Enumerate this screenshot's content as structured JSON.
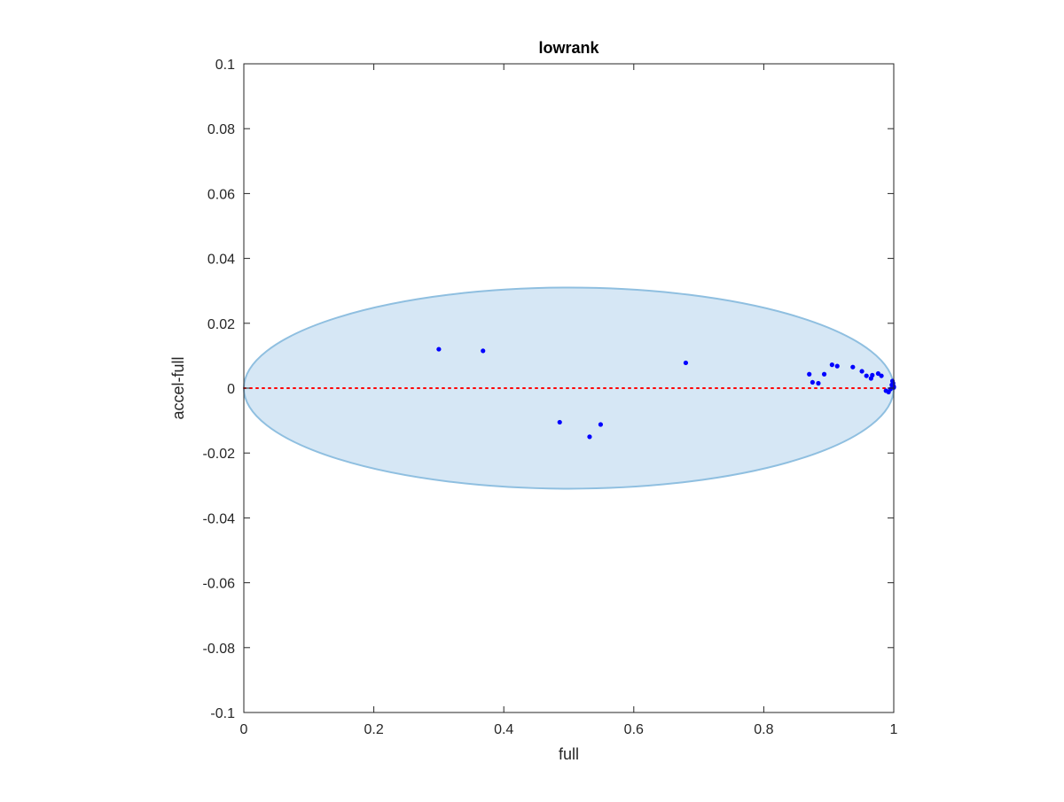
{
  "chart_data": {
    "type": "scatter",
    "title": "lowrank",
    "xlabel": "full",
    "ylabel": "accel-full",
    "xlim": [
      0,
      1
    ],
    "ylim": [
      -0.1,
      0.1
    ],
    "xticks": [
      {
        "value": 0,
        "label": "0"
      },
      {
        "value": 0.2,
        "label": "0.2"
      },
      {
        "value": 0.4,
        "label": "0.4"
      },
      {
        "value": 0.6,
        "label": "0.6"
      },
      {
        "value": 0.8,
        "label": "0.8"
      },
      {
        "value": 1,
        "label": "1"
      }
    ],
    "yticks": [
      {
        "value": 0.1,
        "label": "0.1"
      },
      {
        "value": 0.08,
        "label": "0.08"
      },
      {
        "value": 0.06,
        "label": "0.06"
      },
      {
        "value": 0.04,
        "label": "0.04"
      },
      {
        "value": 0.02,
        "label": "0.02"
      },
      {
        "value": 0,
        "label": "0"
      },
      {
        "value": -0.02,
        "label": "-0.02"
      },
      {
        "value": -0.04,
        "label": "-0.04"
      },
      {
        "value": -0.06,
        "label": "-0.06"
      },
      {
        "value": -0.08,
        "label": "-0.08"
      },
      {
        "value": -0.1,
        "label": "-0.1"
      }
    ],
    "grid": false,
    "reference_line": {
      "y": 0,
      "style": "dotted",
      "color": "#ff0000"
    },
    "ellipse": {
      "cx": 0.5,
      "cy": 0,
      "rx": 0.5,
      "ry": 0.031,
      "fill": "#d6e7f5",
      "stroke": "#8fbfe0"
    },
    "series": [
      {
        "color": "#0000ff",
        "points": [
          [
            0.3,
            0.012
          ],
          [
            0.368,
            0.0115
          ],
          [
            0.486,
            -0.0105
          ],
          [
            0.532,
            -0.015
          ],
          [
            0.549,
            -0.0112
          ],
          [
            0.68,
            0.0078
          ],
          [
            0.87,
            0.0043
          ],
          [
            0.875,
            0.0018
          ],
          [
            0.884,
            0.0015
          ],
          [
            0.893,
            0.0043
          ],
          [
            0.905,
            0.0072
          ],
          [
            0.913,
            0.0068
          ],
          [
            0.937,
            0.0065
          ],
          [
            0.951,
            0.0052
          ],
          [
            0.958,
            0.0038
          ],
          [
            0.965,
            0.003
          ],
          [
            0.967,
            0.004
          ],
          [
            0.976,
            0.0045
          ],
          [
            0.981,
            0.0038
          ],
          [
            0.988,
            -0.0008
          ],
          [
            0.992,
            -0.0012
          ],
          [
            0.995,
            -0.0003
          ],
          [
            0.997,
            0.001
          ],
          [
            0.998,
            0.0022
          ],
          [
            0.999,
            0.0015
          ],
          [
            1.0,
            0.0005
          ],
          [
            1.0,
            0.0002
          ],
          [
            0.999,
            0.0008
          ]
        ]
      }
    ]
  }
}
